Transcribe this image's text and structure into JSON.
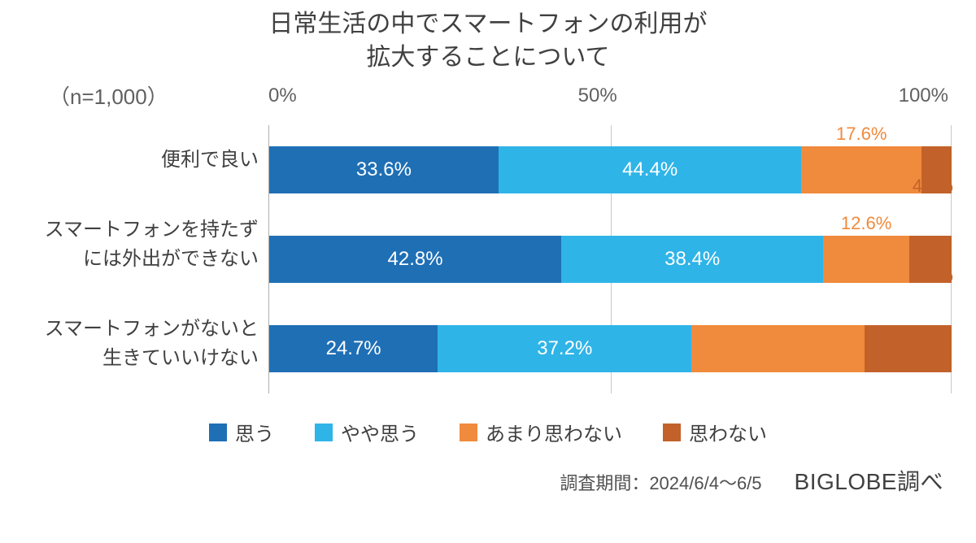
{
  "chart": {
    "type": "stacked-bar-horizontal",
    "title_line1": "日常生活の中でスマートフォンの利用が",
    "title_line2": "拡大することについて",
    "sample_size": "（n=1,000）",
    "axis": {
      "ticks": [
        "0%",
        "50%",
        "100%"
      ],
      "min": 0,
      "max": 100
    },
    "colors": {
      "s1": "#1f6fb5",
      "s2": "#2fb4e8",
      "s3": "#f08a3c",
      "s4": "#c2622a",
      "grid": "#c8c8c8",
      "bg": "#ffffff"
    },
    "series_labels": {
      "s1": "思う",
      "s2": "やや思う",
      "s3": "あまり思わない",
      "s4": "思わない"
    },
    "rows": [
      {
        "label_l1": "便利で良い",
        "label_l2": "",
        "s1": 33.6,
        "s2": 44.4,
        "s3": 17.6,
        "s4": 4.4,
        "t1": "33.6%",
        "t2": "44.4%",
        "t3": "17.6%",
        "t4": "4.4%"
      },
      {
        "label_l1": "スマートフォンを持たず",
        "label_l2": "には外出ができない",
        "s1": 42.8,
        "s2": 38.4,
        "s3": 12.6,
        "s4": 6.2,
        "t1": "42.8%",
        "t2": "38.4%",
        "t3": "12.6%",
        "t4": "6.2%"
      },
      {
        "label_l1": "スマートフォンがないと",
        "label_l2": "生きていいけない",
        "s1": 24.7,
        "s2": 37.2,
        "s3": 25.3,
        "s4": 12.8,
        "t1": "24.7%",
        "t2": "37.2%",
        "t3": "25.3%",
        "t4": "12.8%"
      }
    ],
    "survey_period": "調査期間：2024/6/4～6/5",
    "source": "BIGLOBE調べ"
  }
}
